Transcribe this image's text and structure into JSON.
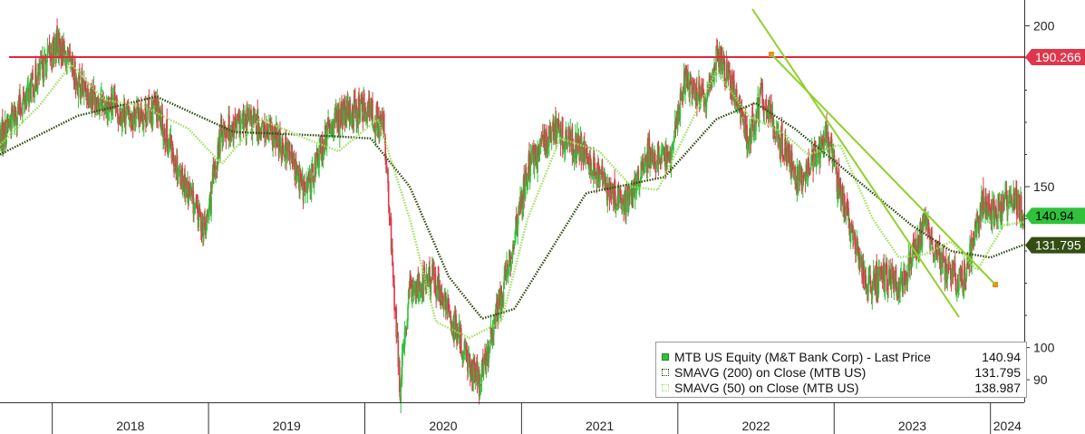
{
  "chart_data": {
    "type": "line",
    "ylim": [
      83,
      208
    ],
    "y_ticks": [
      90,
      100,
      150,
      200
    ],
    "x_range": [
      "2017-09-01",
      "2024-03-20"
    ],
    "x_labels": [
      "2018",
      "2019",
      "2020",
      "2021",
      "2022",
      "2023",
      "2024"
    ],
    "grid": false,
    "legend_placement": "bottom-right",
    "resistance_level": 190.266,
    "trendline": {
      "start": [
        "2022-04-01",
        206
      ],
      "end": [
        "2023-06-01",
        104
      ]
    },
    "trendline_marker": {
      "x": "2024-03-20",
      "y": 114
    },
    "trendline_marker_top": {
      "x": "2022-03-01",
      "y": 190.266
    },
    "price_tags": [
      {
        "value": "190.266",
        "y": 190.266,
        "color": "#e0364b",
        "text_color": "#ffffff"
      },
      {
        "value": "140.94",
        "y": 140.94,
        "color": "#2fc23a",
        "text_color": "#000000"
      },
      {
        "value": "131.795",
        "y": 131.795,
        "color": "#334d12",
        "text_color": "#ffffff"
      }
    ],
    "series": [
      {
        "name": "MTB US Equity (M&T Bank Corp) - Last Price",
        "legend_value": "140.94",
        "color_up": "#2fc23a",
        "color_down": "#e0364b",
        "x": [
          "2017-09-01",
          "2017-11-01",
          "2018-01-15",
          "2018-03-01",
          "2018-05-01",
          "2018-07-01",
          "2018-09-01",
          "2018-10-15",
          "2018-12-24",
          "2019-02-01",
          "2019-04-15",
          "2019-07-01",
          "2019-08-15",
          "2019-10-15",
          "2019-12-31",
          "2020-02-15",
          "2020-03-23",
          "2020-04-15",
          "2020-06-08",
          "2020-09-25",
          "2020-11-30",
          "2021-01-15",
          "2021-03-15",
          "2021-05-15",
          "2021-07-20",
          "2021-09-01",
          "2021-10-25",
          "2021-12-15",
          "2022-01-15",
          "2022-03-08",
          "2022-04-05",
          "2022-06-16",
          "2022-07-15",
          "2022-09-01",
          "2022-10-10",
          "2022-12-15",
          "2023-02-01",
          "2023-03-15",
          "2023-05-04",
          "2023-06-01",
          "2023-08-01",
          "2023-09-15",
          "2023-10-27",
          "2023-12-15",
          "2024-01-10",
          "2024-02-15",
          "2024-03-20"
        ],
        "values": [
          165,
          178,
          195,
          182,
          176,
          172,
          174,
          158,
          136,
          168,
          170,
          162,
          148,
          170,
          175,
          168,
          87,
          118,
          122,
          88,
          125,
          155,
          168,
          162,
          150,
          144,
          160,
          158,
          184,
          176,
          192,
          165,
          178,
          163,
          152,
          165,
          140,
          120,
          122,
          118,
          138,
          125,
          120,
          145,
          142,
          148,
          141
        ]
      },
      {
        "name": "SMAVG (200) on Close (MTB US)",
        "legend_value": "131.795",
        "color": "#2d4a10",
        "x": [
          "2017-09-01",
          "2018-03-01",
          "2018-09-01",
          "2019-03-01",
          "2019-09-01",
          "2020-01-15",
          "2020-04-15",
          "2020-07-15",
          "2020-10-01",
          "2020-12-15",
          "2021-06-01",
          "2021-12-01",
          "2022-04-01",
          "2022-07-01",
          "2022-10-01",
          "2023-01-01",
          "2023-04-01",
          "2023-07-01",
          "2023-10-01",
          "2024-01-01",
          "2024-03-20"
        ],
        "values": [
          160,
          172,
          178,
          167,
          166,
          165,
          150,
          122,
          109,
          112,
          148,
          153,
          171,
          176,
          168,
          158,
          148,
          138,
          130,
          128,
          132
        ]
      },
      {
        "name": "SMAVG (50) on Close (MTB US)",
        "legend_value": "138.987",
        "color": "#9fe05f",
        "x": [
          "2017-09-01",
          "2017-12-01",
          "2018-02-15",
          "2018-05-01",
          "2018-08-01",
          "2018-11-15",
          "2019-02-01",
          "2019-05-01",
          "2019-08-15",
          "2019-11-01",
          "2020-02-01",
          "2020-04-15",
          "2020-06-15",
          "2020-09-01",
          "2020-11-15",
          "2021-01-15",
          "2021-04-01",
          "2021-07-01",
          "2021-09-15",
          "2021-11-15",
          "2022-02-01",
          "2022-04-01",
          "2022-06-15",
          "2022-09-01",
          "2022-11-01",
          "2023-01-15",
          "2023-04-01",
          "2023-06-01",
          "2023-08-01",
          "2023-10-01",
          "2023-12-01",
          "2024-02-01",
          "2024-03-20"
        ],
        "values": [
          163,
          175,
          188,
          177,
          175,
          168,
          157,
          171,
          165,
          161,
          171,
          140,
          108,
          103,
          108,
          140,
          165,
          161,
          150,
          149,
          170,
          186,
          172,
          167,
          160,
          163,
          140,
          128,
          129,
          133,
          124,
          138,
          139
        ]
      }
    ]
  },
  "legend": {
    "rows": [
      {
        "label": "MTB US Equity (M&T Bank Corp) - Last Price",
        "value": "140.94"
      },
      {
        "label": "SMAVG (200)  on Close (MTB US)",
        "value": "131.795"
      },
      {
        "label": "SMAVG (50)  on Close (MTB US)",
        "value": "138.987"
      }
    ]
  },
  "colors": {
    "resistance_line": "#e8233f",
    "trendline": "#8fd12a",
    "marker": "#f08a1c",
    "axis": "#333333",
    "up": "#2fc23a",
    "down": "#e0364b"
  }
}
